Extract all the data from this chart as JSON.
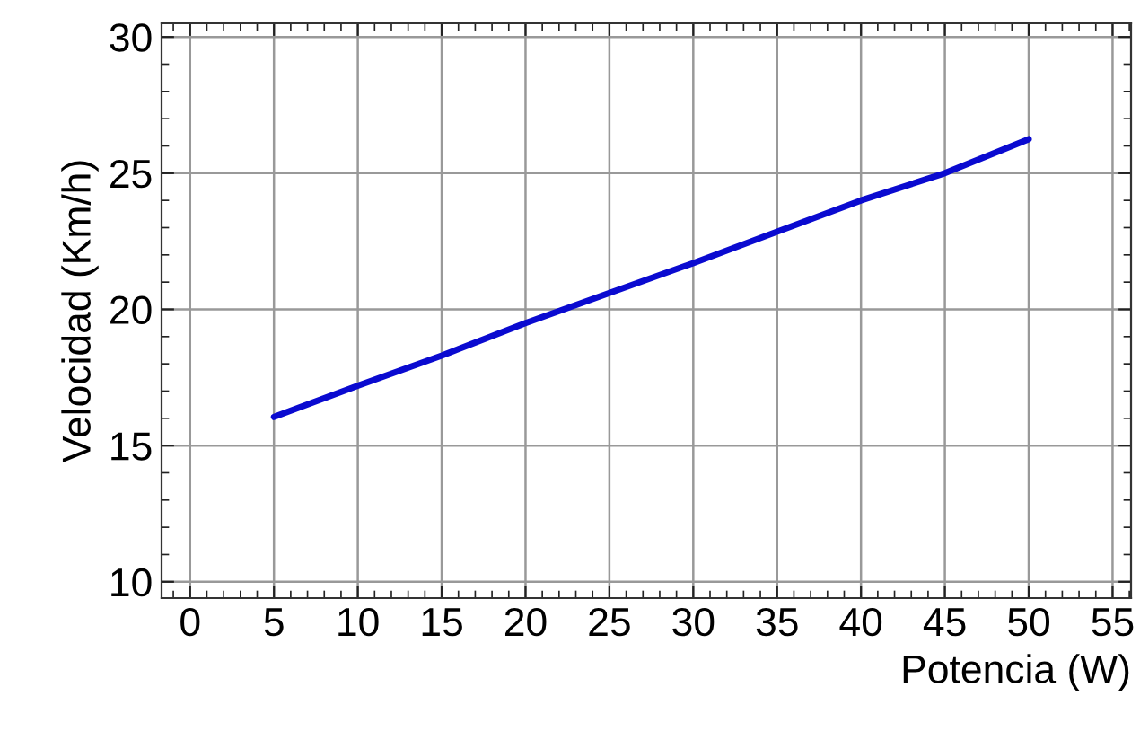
{
  "chart_data": {
    "type": "line",
    "xlabel": "Potencia (W)",
    "ylabel": "Velocidad (Km/h)",
    "x": [
      5,
      10,
      15,
      20,
      25,
      30,
      35,
      40,
      45,
      50
    ],
    "series": [
      {
        "color": "#0a0ad0",
        "values": [
          16.05,
          17.2,
          18.3,
          19.5,
          20.6,
          21.7,
          22.85,
          24.0,
          25.0,
          26.25
        ]
      }
    ],
    "xlim": [
      -1.7,
      56.1
    ],
    "ylim": [
      9.4,
      30.5
    ],
    "xticks": [
      0,
      5,
      10,
      15,
      20,
      25,
      30,
      35,
      40,
      45,
      50,
      55
    ],
    "yticks": [
      10,
      15,
      20,
      25,
      30
    ],
    "grid": true,
    "marker": "none",
    "line_style": "solid"
  }
}
